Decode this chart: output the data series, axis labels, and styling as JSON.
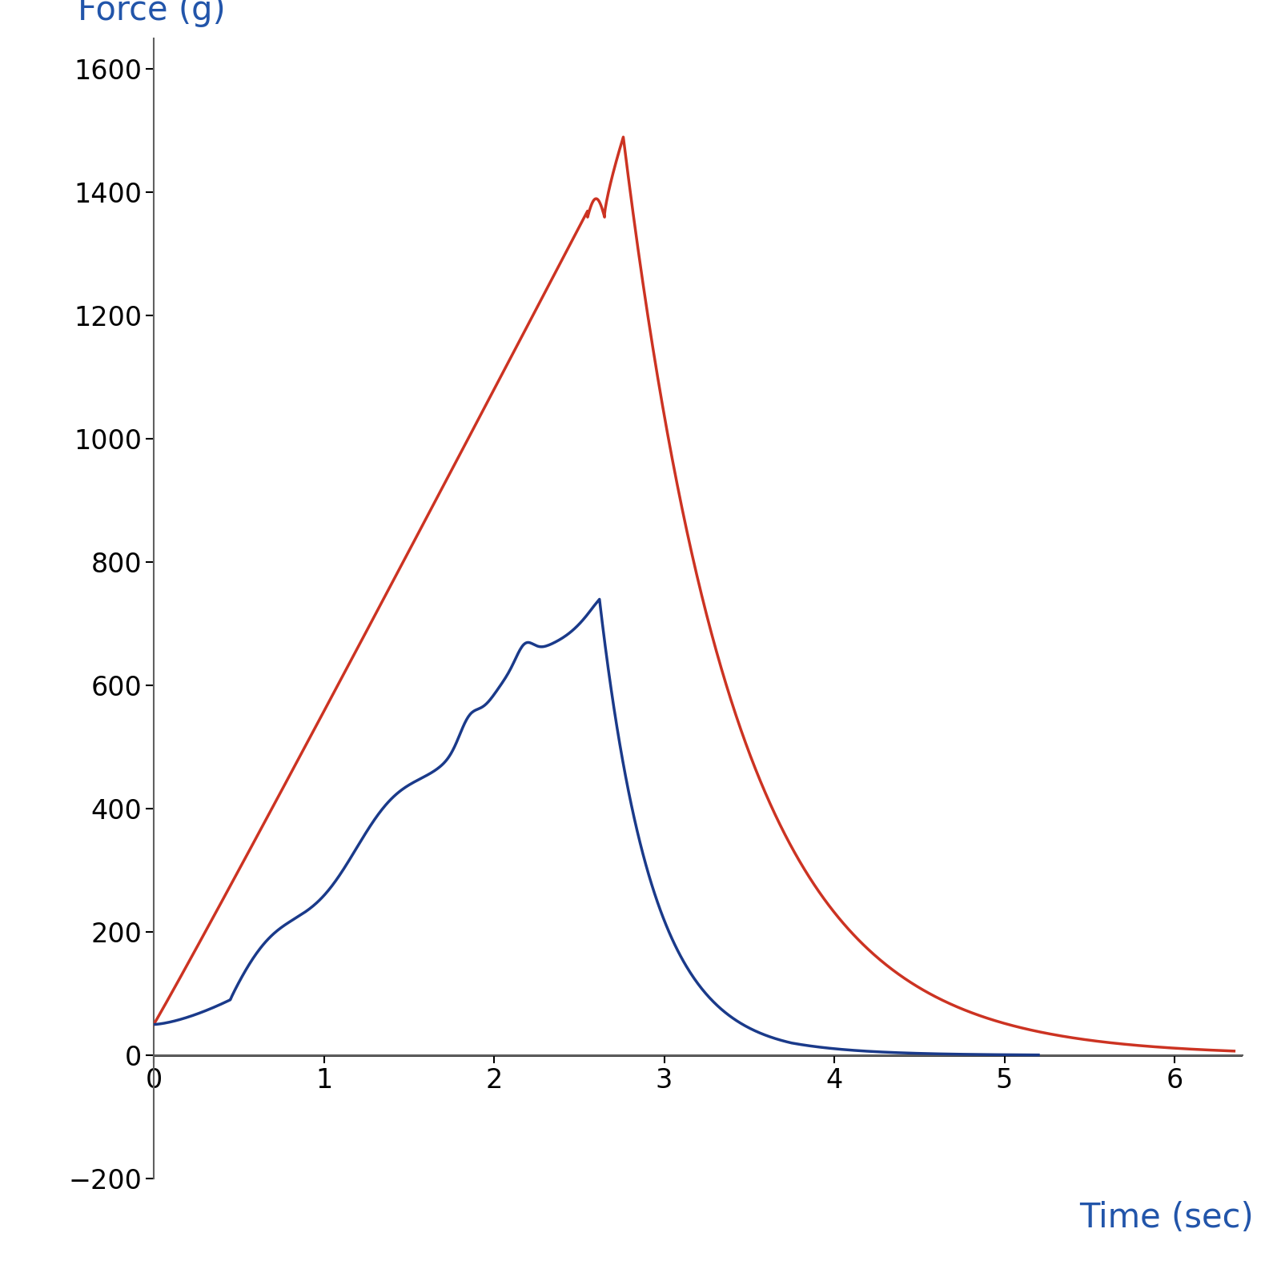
{
  "xlabel": "Time (sec)",
  "ylabel": "Force (g)",
  "xlabel_color": "#2255aa",
  "ylabel_color": "#2255aa",
  "label_fontsize": 30,
  "tick_fontsize": 24,
  "background_color": "#ffffff",
  "xlim": [
    0,
    6.4
  ],
  "ylim": [
    -200,
    1650
  ],
  "yticks": [
    -200,
    0,
    200,
    400,
    600,
    800,
    1000,
    1200,
    1400,
    1600
  ],
  "xticks": [
    0,
    1,
    2,
    3,
    4,
    5,
    6
  ],
  "red_color": "#cc3322",
  "blue_color": "#1a3a8a",
  "line_width": 2.5,
  "spine_color": "#606060",
  "zero_line_color": "#000000"
}
